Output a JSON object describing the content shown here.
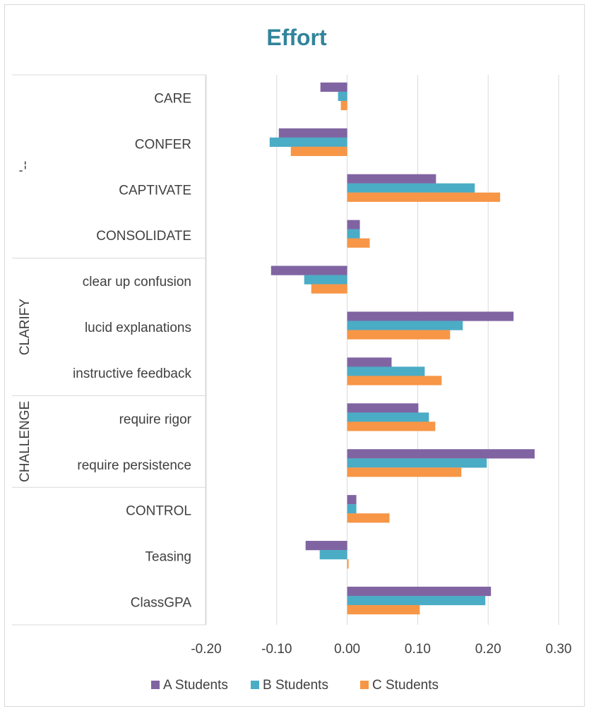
{
  "chart_data": {
    "type": "bar",
    "orientation": "horizontal",
    "title": "Effort",
    "xlabel": "",
    "ylabel": "",
    "xlim": [
      -0.2,
      0.3
    ],
    "x_ticks": [
      "-0.20",
      "-0.10",
      "0.00",
      "0.10",
      "0.20",
      "0.30"
    ],
    "grid": true,
    "legend_position": "bottom",
    "groups": [
      {
        "label": "'--",
        "categories": [
          "CARE",
          "CONFER",
          "CAPTIVATE",
          "CONSOLIDATE"
        ]
      },
      {
        "label": "CLARIFY",
        "categories": [
          "clear up confusion",
          "lucid explanations",
          "instructive feedback"
        ]
      },
      {
        "label": "CHALLENGE",
        "categories": [
          "require rigor",
          "require persistence"
        ]
      },
      {
        "label": "",
        "categories": [
          "CONTROL",
          "Teasing",
          "ClassGPA"
        ]
      }
    ],
    "categories": [
      "CARE",
      "CONFER",
      "CAPTIVATE",
      "CONSOLIDATE",
      "clear up confusion",
      "lucid explanations",
      "instructive feedback",
      "require rigor",
      "require persistence",
      "CONTROL",
      "Teasing",
      "ClassGPA"
    ],
    "series": [
      {
        "name": "A Students",
        "color": "#8064A2",
        "values": [
          -0.038,
          -0.097,
          0.126,
          0.018,
          -0.108,
          0.236,
          0.063,
          0.101,
          0.266,
          0.013,
          -0.059,
          0.204
        ]
      },
      {
        "name": "B Students",
        "color": "#4BACC6",
        "values": [
          -0.013,
          -0.11,
          0.181,
          0.018,
          -0.061,
          0.164,
          0.11,
          0.116,
          0.198,
          0.013,
          -0.039,
          0.196
        ]
      },
      {
        "name": "C Students",
        "color": "#F79646",
        "values": [
          -0.009,
          -0.08,
          0.217,
          0.032,
          -0.051,
          0.146,
          0.134,
          0.125,
          0.162,
          0.06,
          0.002,
          0.103
        ]
      }
    ],
    "title_color": "#31849B"
  }
}
